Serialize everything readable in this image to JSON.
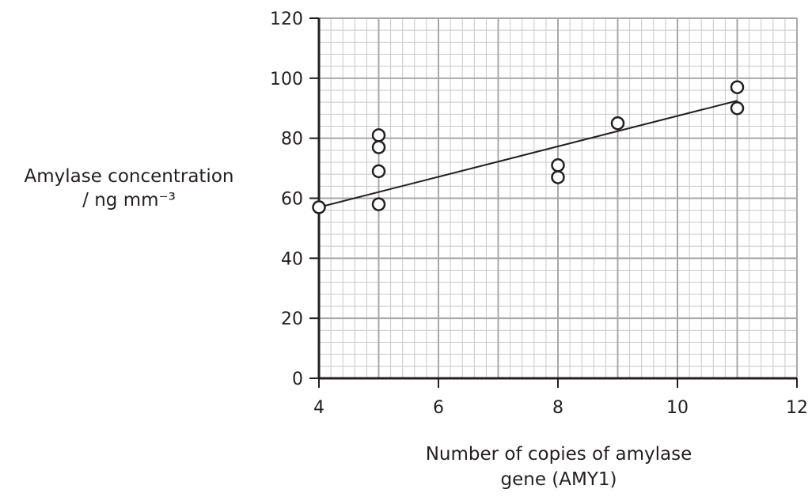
{
  "chart_data": {
    "type": "scatter",
    "title": "",
    "xlabel_line1": "Number of copies of amylase",
    "xlabel_line2": "gene (AMY1)",
    "ylabel_line1": "Amylase concentration",
    "ylabel_line2": "/ ng mm⁻³",
    "xlim": [
      4,
      12
    ],
    "ylim": [
      0,
      120
    ],
    "x_ticks": [
      4,
      6,
      8,
      10,
      12
    ],
    "y_ticks": [
      0,
      20,
      40,
      60,
      80,
      100,
      120
    ],
    "grid": true,
    "points": [
      {
        "x": 4,
        "y": 57
      },
      {
        "x": 5,
        "y": 81
      },
      {
        "x": 5,
        "y": 77
      },
      {
        "x": 5,
        "y": 69
      },
      {
        "x": 5,
        "y": 58
      },
      {
        "x": 8,
        "y": 71
      },
      {
        "x": 8,
        "y": 67
      },
      {
        "x": 9,
        "y": 85
      },
      {
        "x": 11,
        "y": 97
      },
      {
        "x": 11,
        "y": 90
      }
    ],
    "trend_line": {
      "x": [
        4,
        11
      ],
      "y": [
        57,
        92.5
      ]
    },
    "colors": {
      "grid_minor": "#c8c8c8",
      "grid_major": "#a8a8a8",
      "axis": "#231f20",
      "marker_fill": "#ffffff"
    }
  }
}
